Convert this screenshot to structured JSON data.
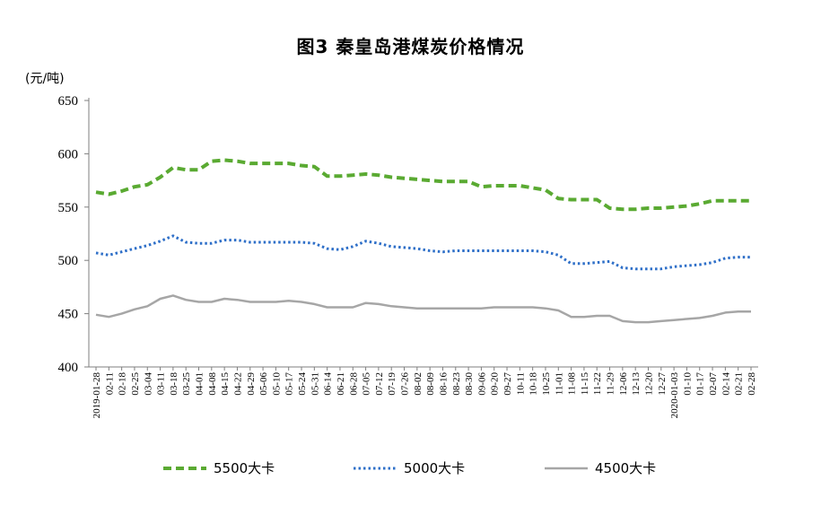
{
  "chart_data": {
    "type": "line",
    "title": "图3    秦皇岛港煤炭价格情况",
    "unit": "(元/吨)",
    "ylim": [
      400,
      650
    ],
    "yticks": [
      400,
      450,
      500,
      550,
      600,
      650
    ],
    "grid": false,
    "legend_position": "bottom",
    "x": [
      "2019-01-28",
      "02-11",
      "02-18",
      "02-25",
      "03-04",
      "03-11",
      "03-18",
      "03-25",
      "04-01",
      "04-08",
      "04-15",
      "04-22",
      "04-29",
      "05-06",
      "05-10",
      "05-17",
      "05-24",
      "05-31",
      "06-14",
      "06-21",
      "06-28",
      "07-05",
      "07-12",
      "07-19",
      "07-26",
      "08-02",
      "08-09",
      "08-16",
      "08-23",
      "08-30",
      "09-06",
      "09-20",
      "09-27",
      "10-11",
      "10-18",
      "10-25",
      "11-01",
      "11-08",
      "11-15",
      "11-22",
      "11-29",
      "12-06",
      "12-13",
      "12-20",
      "12-27",
      "2020-01-03",
      "01-10",
      "01-17",
      "02-07",
      "02-14",
      "02-21",
      "02-28"
    ],
    "series": [
      {
        "name": "5500大卡",
        "color": "#5aaa32",
        "style": "dashed",
        "values": [
          564,
          562,
          565,
          569,
          571,
          578,
          587,
          585,
          585,
          593,
          594,
          593,
          591,
          591,
          591,
          591,
          589,
          588,
          579,
          579,
          580,
          581,
          580,
          578,
          577,
          576,
          575,
          574,
          574,
          574,
          569,
          570,
          570,
          570,
          568,
          566,
          558,
          557,
          557,
          557,
          549,
          548,
          548,
          549,
          549,
          550,
          551,
          553,
          556,
          556,
          556,
          556
        ]
      },
      {
        "name": "5000大卡",
        "color": "#2e6fc8",
        "style": "dotted",
        "values": [
          507,
          505,
          508,
          511,
          514,
          518,
          523,
          517,
          516,
          516,
          519,
          519,
          517,
          517,
          517,
          517,
          517,
          516,
          511,
          510,
          513,
          518,
          516,
          513,
          512,
          511,
          509,
          508,
          509,
          509,
          509,
          509,
          509,
          509,
          509,
          508,
          505,
          497,
          497,
          498,
          499,
          493,
          492,
          492,
          492,
          494,
          495,
          496,
          498,
          502,
          503,
          503
        ]
      },
      {
        "name": "4500大卡",
        "color": "#a6a6a6",
        "style": "solid",
        "values": [
          449,
          447,
          450,
          454,
          457,
          464,
          467,
          463,
          461,
          461,
          464,
          463,
          461,
          461,
          461,
          462,
          461,
          459,
          456,
          456,
          456,
          460,
          459,
          457,
          456,
          455,
          455,
          455,
          455,
          455,
          455,
          456,
          456,
          456,
          456,
          455,
          453,
          447,
          447,
          448,
          448,
          443,
          442,
          442,
          443,
          444,
          445,
          446,
          448,
          451,
          452,
          452
        ]
      }
    ]
  }
}
